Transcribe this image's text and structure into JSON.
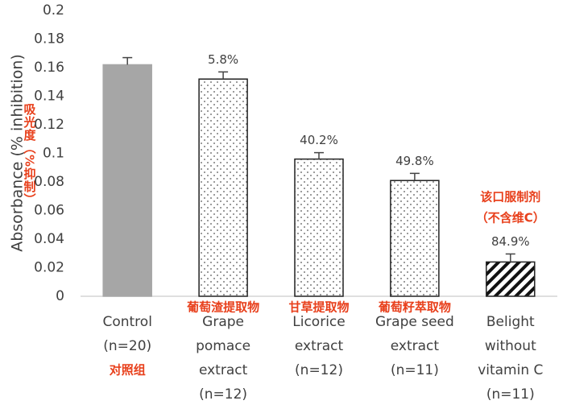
{
  "chart_data": {
    "type": "bar",
    "y_label": "Absorbance (% inhibition)",
    "y_label_note": "吸光度（%抑制）",
    "categories": [
      [
        "Control",
        "(n=20)"
      ],
      [
        "Grape",
        "pomace",
        "extract",
        "(n=12)"
      ],
      [
        "Licorice",
        "extract",
        "(n=12)"
      ],
      [
        "Grape seed",
        "extract",
        "(n=11)"
      ],
      [
        "Belight",
        "without",
        "vitamin C",
        "(n=11)"
      ]
    ],
    "category_notes": [
      "对照组",
      "葡萄渣提取物",
      "甘草提取物",
      "葡萄籽萃取物",
      null
    ],
    "values": [
      0.162,
      0.152,
      0.096,
      0.081,
      0.024
    ],
    "errors": [
      0.005,
      0.005,
      0.0045,
      0.005,
      0.0056
    ],
    "inhibition_labels": [
      null,
      "5.8%",
      "40.2%",
      "49.8%",
      "84.9%"
    ],
    "callout": [
      "该口服制剂",
      "（不含维C）"
    ],
    "patterns": [
      "solid",
      "dots",
      "dots",
      "dots",
      "hatch"
    ],
    "color": "#a6a6a6",
    "note_color": "#e8401c",
    "ylim": [
      0,
      0.2
    ],
    "yticks": [
      0,
      0.02,
      0.04,
      0.06,
      0.08,
      0.1,
      0.12,
      0.14,
      0.16,
      0.18,
      0.2
    ]
  }
}
